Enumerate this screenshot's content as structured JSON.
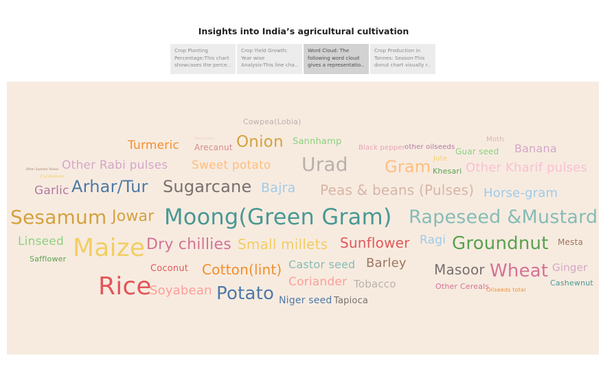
{
  "dashboard": {
    "title": "Insights into India’s agricultural cultivation"
  },
  "tabs": [
    {
      "line1": "Crop Planting",
      "line2": "Percentage:This chart",
      "line3": "showcases the perce..",
      "active": false
    },
    {
      "line1": "Crop Yield Growth:",
      "line2": "Year wise",
      "line3": "Analysis-This line cha..",
      "active": false
    },
    {
      "line1": "Word Cloud:  The",
      "line2": "following word cloud",
      "line3": "gives a representatio..",
      "active": true
    },
    {
      "line1": "Crop Production in",
      "line2": "Tonnes: Season-This",
      "line3": "donut chart visually r..",
      "active": false
    }
  ],
  "words": [
    {
      "text": "Cowpea(Lobia)",
      "size": 11,
      "color": "#bab0ac"
    },
    {
      "text": "Turmeric",
      "size": 17,
      "color": "#f28e2b"
    },
    {
      "text": "Peas & beans",
      "size": 4,
      "color": "#e8c4bd"
    },
    {
      "text": "Arecanut",
      "size": 12,
      "color": "#d88b8b"
    },
    {
      "text": "Onion",
      "size": 23,
      "color": "#d4a13e"
    },
    {
      "text": "Sannhamp",
      "size": 13,
      "color": "#8cd17d"
    },
    {
      "text": "Moth",
      "size": 10,
      "color": "#d7b5a6"
    },
    {
      "text": "Black pepper",
      "size": 10,
      "color": "#e8a3b3"
    },
    {
      "text": "other oilseeds",
      "size": 10,
      "color": "#b07aa1"
    },
    {
      "text": "Guar seed",
      "size": 12,
      "color": "#8cd17d"
    },
    {
      "text": "Banana",
      "size": 16,
      "color": "#d4a6c8"
    },
    {
      "text": "Other Summer Pulses",
      "size": 4,
      "color": "#9c755f"
    },
    {
      "text": "Cardamom",
      "size": 6,
      "color": "#f1ce63"
    },
    {
      "text": "Other Rabi pulses",
      "size": 17,
      "color": "#d4a6c8"
    },
    {
      "text": "Sweet potato",
      "size": 17,
      "color": "#ffbe7d"
    },
    {
      "text": "Urad",
      "size": 28,
      "color": "#bab0ac"
    },
    {
      "text": "Gram",
      "size": 24,
      "color": "#ffbe7d"
    },
    {
      "text": "Jute",
      "size": 10,
      "color": "#f1ce63"
    },
    {
      "text": "Khesari",
      "size": 11,
      "color": "#59a14f"
    },
    {
      "text": "Other Kharif pulses",
      "size": 18,
      "color": "#fabfd2"
    },
    {
      "text": "Garlic",
      "size": 17,
      "color": "#b07aa1"
    },
    {
      "text": "Arhar/Tur",
      "size": 24,
      "color": "#4e79a7"
    },
    {
      "text": "Sugarcane",
      "size": 24,
      "color": "#79706e"
    },
    {
      "text": "Bajra",
      "size": 19,
      "color": "#a0cbe8"
    },
    {
      "text": "Peas & beans (Pulses)",
      "size": 20,
      "color": "#d7b5a6"
    },
    {
      "text": "Horse-gram",
      "size": 18,
      "color": "#a0cbe8"
    },
    {
      "text": "Sesamum",
      "size": 28,
      "color": "#d4a13e"
    },
    {
      "text": "Jowar",
      "size": 22,
      "color": "#d4a13e"
    },
    {
      "text": "Moong(Green Gram)",
      "size": 32,
      "color": "#499894"
    },
    {
      "text": "Rapeseed &Mustard",
      "size": 27,
      "color": "#86bcb6"
    },
    {
      "text": "Linseed",
      "size": 17,
      "color": "#8cd17d"
    },
    {
      "text": "Maize",
      "size": 36,
      "color": "#f1ce63"
    },
    {
      "text": "Dry chillies",
      "size": 22,
      "color": "#d37295"
    },
    {
      "text": "Small millets",
      "size": 20,
      "color": "#f1ce63"
    },
    {
      "text": "Sunflower",
      "size": 20,
      "color": "#e15759"
    },
    {
      "text": "Ragi",
      "size": 17,
      "color": "#a0cbe8"
    },
    {
      "text": "Groundnut",
      "size": 26,
      "color": "#59a14f"
    },
    {
      "text": "Mesta",
      "size": 12,
      "color": "#9c755f"
    },
    {
      "text": "Safflower",
      "size": 11,
      "color": "#59a14f"
    },
    {
      "text": "Coconut",
      "size": 13,
      "color": "#e15759"
    },
    {
      "text": "Cotton(lint)",
      "size": 20,
      "color": "#f28e2b"
    },
    {
      "text": "Castor seed",
      "size": 16,
      "color": "#86bcb6"
    },
    {
      "text": "Barley",
      "size": 18,
      "color": "#9c755f"
    },
    {
      "text": "Masoor",
      "size": 20,
      "color": "#79706e"
    },
    {
      "text": "Wheat",
      "size": 26,
      "color": "#d37295"
    },
    {
      "text": "Ginger",
      "size": 15,
      "color": "#d4a6c8"
    },
    {
      "text": "Cashewnut",
      "size": 11,
      "color": "#499894"
    },
    {
      "text": "Rice",
      "size": 36,
      "color": "#e15759"
    },
    {
      "text": "Soyabean",
      "size": 18,
      "color": "#ff9d9a"
    },
    {
      "text": "Potato",
      "size": 26,
      "color": "#4e79a7"
    },
    {
      "text": "Niger seed",
      "size": 14,
      "color": "#4e79a7"
    },
    {
      "text": "Coriander",
      "size": 17,
      "color": "#ff9d9a"
    },
    {
      "text": "Tobacco",
      "size": 15,
      "color": "#bab0ac"
    },
    {
      "text": "Tapioca",
      "size": 13,
      "color": "#79706e"
    },
    {
      "text": "Other Cereals",
      "size": 11,
      "color": "#d37295"
    },
    {
      "text": "Oilseeds total",
      "size": 8,
      "color": "#f28e2b"
    }
  ]
}
